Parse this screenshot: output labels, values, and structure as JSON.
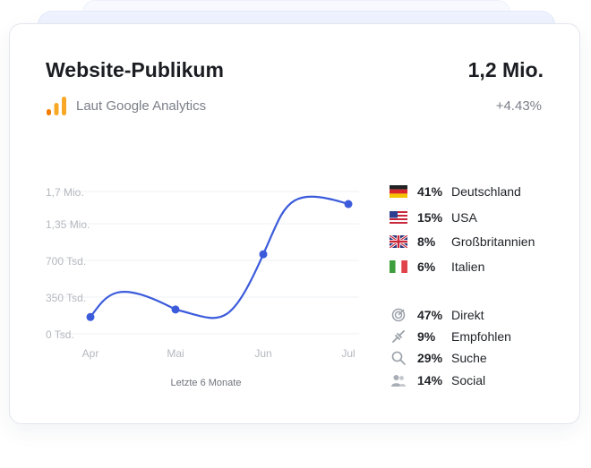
{
  "widget": {
    "title": "Website-Publikum",
    "total": "1,2 Mio.",
    "source_label": "Laut Google Analytics",
    "change": "+4.43%"
  },
  "chart_data": {
    "type": "line",
    "categories": [
      "Apr",
      "Mai",
      "Jun",
      "Jul"
    ],
    "values": [
      200000,
      290000,
      950000,
      1550000
    ],
    "y_ticks": [
      "0 Tsd.",
      "350 Tsd.",
      "700 Tsd.",
      "1,35 Mio.",
      "1,7 Mio."
    ],
    "y_tick_values": [
      0,
      350000,
      700000,
      1350000,
      1700000
    ],
    "xlabel": "Letzte 6 Monate",
    "ylim": [
      0,
      1700000
    ],
    "grid": true,
    "line_color": "#3b5bdb"
  },
  "countries": [
    {
      "pct": "41%",
      "label": "Deutschland",
      "icon": "flag-germany-icon"
    },
    {
      "pct": "15%",
      "label": "USA",
      "icon": "flag-usa-icon"
    },
    {
      "pct": "8%",
      "label": "Großbritannien",
      "icon": "flag-uk-icon"
    },
    {
      "pct": "6%",
      "label": "Italien",
      "icon": "flag-italy-icon"
    }
  ],
  "channels": [
    {
      "pct": "47%",
      "label": "Direkt",
      "icon": "target-icon"
    },
    {
      "pct": "9%",
      "label": "Empfohlen",
      "icon": "link-icon"
    },
    {
      "pct": "29%",
      "label": "Suche",
      "icon": "search-icon"
    },
    {
      "pct": "14%",
      "label": "Social",
      "icon": "users-icon"
    }
  ]
}
